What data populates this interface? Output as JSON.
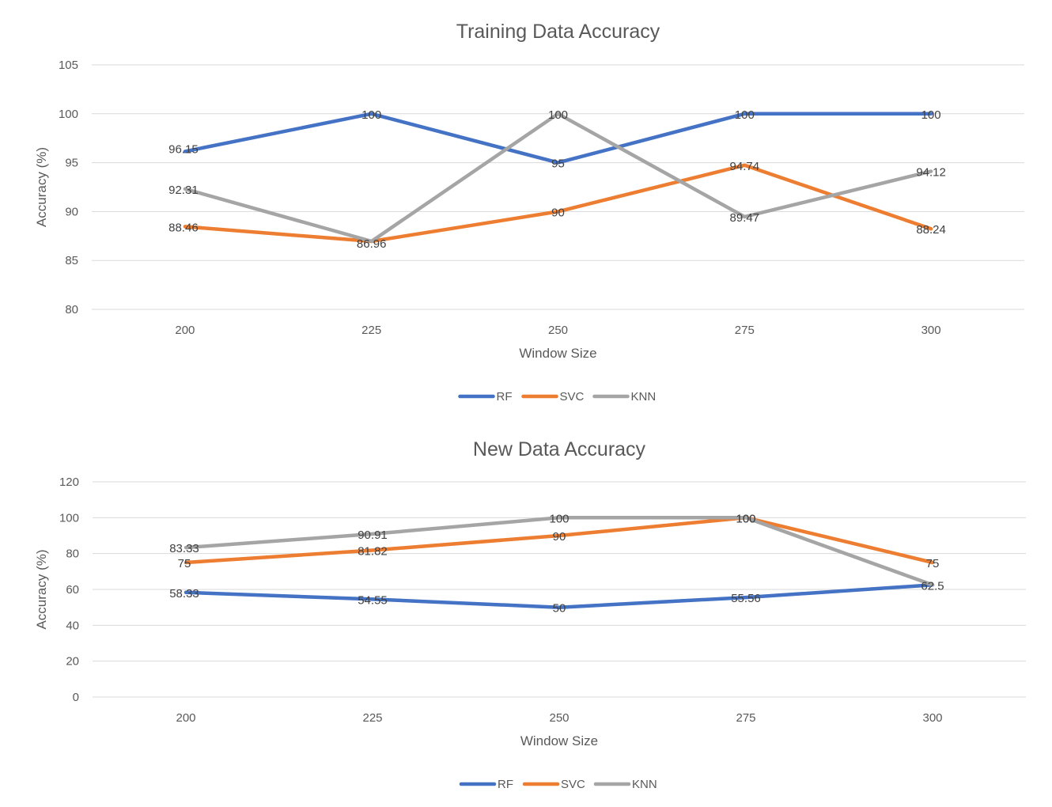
{
  "colors": {
    "RF": "#4472c4",
    "SVC": "#ed7d31",
    "KNN": "#a5a5a5"
  },
  "chart_data": [
    {
      "type": "line",
      "title": "Training Data Accuracy",
      "xlabel": "Window Size",
      "ylabel": "Accuracy (%)",
      "categories": [
        "200",
        "225",
        "250",
        "275",
        "300"
      ],
      "ylim": [
        80,
        105
      ],
      "yticks": [
        80,
        85,
        90,
        95,
        100,
        105
      ],
      "grid": true,
      "legend": "bottom",
      "series": [
        {
          "name": "RF",
          "values": [
            96.15,
            100,
            95,
            100,
            100
          ],
          "labels": [
            "96.15",
            "100",
            "95",
            "100",
            "100"
          ]
        },
        {
          "name": "SVC",
          "values": [
            88.46,
            86.96,
            90,
            94.74,
            88.24
          ],
          "labels": [
            "88.46",
            "86.96",
            "90",
            "94.74",
            "88.24"
          ]
        },
        {
          "name": "KNN",
          "values": [
            92.31,
            86.96,
            100,
            89.47,
            94.12
          ],
          "labels": [
            "92.31",
            "",
            "100",
            "89.47",
            "94.12"
          ]
        }
      ]
    },
    {
      "type": "line",
      "title": "New Data Accuracy",
      "xlabel": "Window Size",
      "ylabel": "Accuracy (%)",
      "categories": [
        "200",
        "225",
        "250",
        "275",
        "300"
      ],
      "ylim": [
        0,
        120
      ],
      "yticks": [
        0,
        20,
        40,
        60,
        80,
        100,
        120
      ],
      "grid": true,
      "legend": "bottom",
      "series": [
        {
          "name": "RF",
          "values": [
            58.33,
            54.55,
            50,
            55.56,
            62.5
          ],
          "labels": [
            "58.33",
            "54.55",
            "50",
            "55.56",
            "62.5"
          ]
        },
        {
          "name": "SVC",
          "values": [
            75,
            81.82,
            90,
            100,
            75
          ],
          "labels": [
            "75",
            "81.82",
            "90",
            "100",
            "75"
          ]
        },
        {
          "name": "KNN",
          "values": [
            83.33,
            90.91,
            100,
            100,
            62.5
          ],
          "labels": [
            "83.33",
            "90.91",
            "100",
            "100",
            ""
          ]
        }
      ]
    }
  ]
}
